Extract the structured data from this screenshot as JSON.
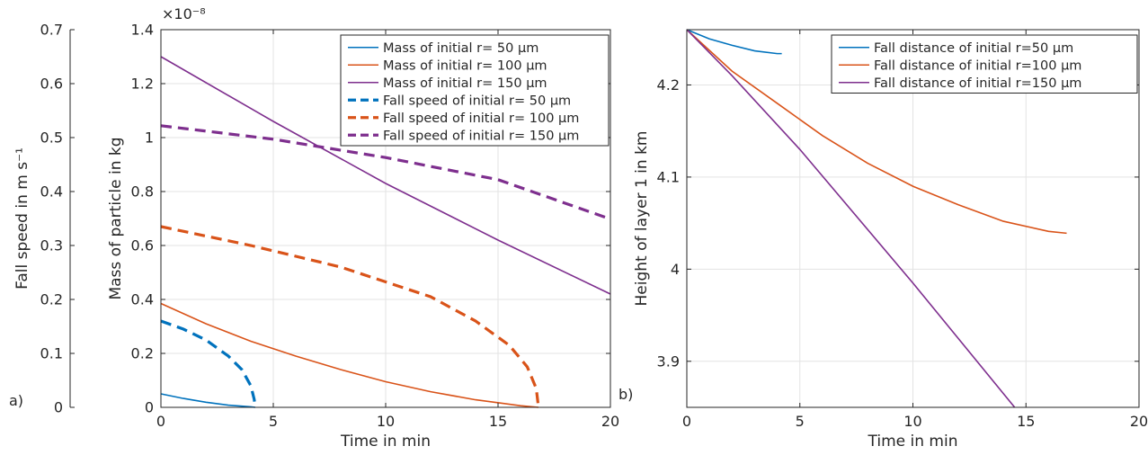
{
  "panels": {
    "a_label": "a)",
    "b_label": "b)"
  },
  "chart_data": [
    {
      "type": "line",
      "panel": "a",
      "xlabel": "Time in min",
      "ylabel": "Mass of particle in kg",
      "y_exponent": "×10⁻⁸",
      "xlim": [
        0,
        20
      ],
      "ylim": [
        0,
        1.4
      ],
      "y_unit_scale": 1e-08,
      "xticks": [
        0,
        5,
        10,
        15,
        20
      ],
      "yticks": [
        0,
        0.2,
        0.4,
        0.6,
        0.8,
        1,
        1.2,
        1.4
      ],
      "ytick_labels": [
        "0",
        "0.2",
        "0.4",
        "0.6",
        "0.8",
        "1",
        "1.2",
        "1.4"
      ],
      "secondary_y": {
        "label": "Fall speed in m s⁻¹",
        "ylim": [
          0,
          0.7
        ],
        "yticks": [
          0,
          0.1,
          0.2,
          0.3,
          0.4,
          0.5,
          0.6,
          0.7
        ],
        "ytick_labels": [
          "0",
          "0.1",
          "0.2",
          "0.3",
          "0.4",
          "0.5",
          "0.6",
          "0.7"
        ]
      },
      "grid": true,
      "legend_position": "top-right",
      "series": [
        {
          "name": "Mass of initial r= 50 μm",
          "axis": "left",
          "style": "solid",
          "color": "#0072BD",
          "x": [
            0,
            1,
            2,
            3,
            4,
            4.2
          ],
          "y": [
            0.05,
            0.033,
            0.019,
            0.008,
            0.002,
            0.0
          ]
        },
        {
          "name": "Mass of initial r= 100 μm",
          "axis": "left",
          "style": "solid",
          "color": "#D95319",
          "x": [
            0,
            2,
            4,
            6,
            8,
            10,
            12,
            14,
            16,
            16.8
          ],
          "y": [
            0.385,
            0.31,
            0.245,
            0.19,
            0.14,
            0.095,
            0.058,
            0.028,
            0.006,
            0.0
          ]
        },
        {
          "name": "Mass of initial r= 150 μm",
          "axis": "left",
          "style": "solid",
          "color": "#7E2F8E",
          "x": [
            0,
            5,
            10,
            15,
            20
          ],
          "y": [
            1.3,
            1.06,
            0.83,
            0.62,
            0.42
          ]
        },
        {
          "name": "Fall speed of initial r= 50 μm",
          "axis": "right",
          "style": "dashed",
          "color": "#0072BD",
          "x": [
            0,
            1,
            2,
            3,
            3.6,
            4.0,
            4.15,
            4.2
          ],
          "y": [
            0.16,
            0.145,
            0.125,
            0.095,
            0.07,
            0.04,
            0.015,
            0.0
          ]
        },
        {
          "name": "Fall speed of initial r= 100 μm",
          "axis": "right",
          "style": "dashed",
          "color": "#D95319",
          "x": [
            0,
            4,
            8,
            12,
            14,
            15.5,
            16.3,
            16.7,
            16.8
          ],
          "y": [
            0.335,
            0.3,
            0.26,
            0.205,
            0.16,
            0.115,
            0.075,
            0.035,
            0.0
          ]
        },
        {
          "name": "Fall speed of initial r= 150 μm",
          "axis": "right",
          "style": "dashed",
          "color": "#7E2F8E",
          "x": [
            0,
            5,
            10,
            15,
            20
          ],
          "y": [
            0.522,
            0.497,
            0.463,
            0.422,
            0.349
          ]
        }
      ]
    },
    {
      "type": "line",
      "panel": "b",
      "xlabel": "Time in min",
      "ylabel": "Height of layer 1 in km",
      "xlim": [
        0,
        20
      ],
      "ylim": [
        3.85,
        4.26
      ],
      "xticks": [
        0,
        5,
        10,
        15,
        20
      ],
      "yticks": [
        3.9,
        4.0,
        4.1,
        4.2
      ],
      "ytick_labels": [
        "3.9",
        "4",
        "4.1",
        "4.2"
      ],
      "grid": true,
      "legend_position": "top-right",
      "series": [
        {
          "name": "Fall distance of initial r=50 μm",
          "style": "solid",
          "color": "#0072BD",
          "x": [
            0,
            1,
            2,
            3,
            4,
            4.2
          ],
          "y": [
            4.26,
            4.25,
            4.243,
            4.237,
            4.234,
            4.234
          ]
        },
        {
          "name": "Fall distance of initial r=100 μm",
          "style": "solid",
          "color": "#D95319",
          "x": [
            0,
            2,
            4,
            6,
            8,
            10,
            12,
            14,
            16,
            16.8
          ],
          "y": [
            4.26,
            4.215,
            4.18,
            4.145,
            4.115,
            4.09,
            4.07,
            4.052,
            4.041,
            4.039
          ]
        },
        {
          "name": "Fall distance of initial r=150 μm",
          "style": "solid",
          "color": "#7E2F8E",
          "x": [
            0,
            2,
            5,
            10,
            14.5
          ],
          "y": [
            4.26,
            4.21,
            4.13,
            3.985,
            3.85
          ]
        }
      ]
    }
  ]
}
